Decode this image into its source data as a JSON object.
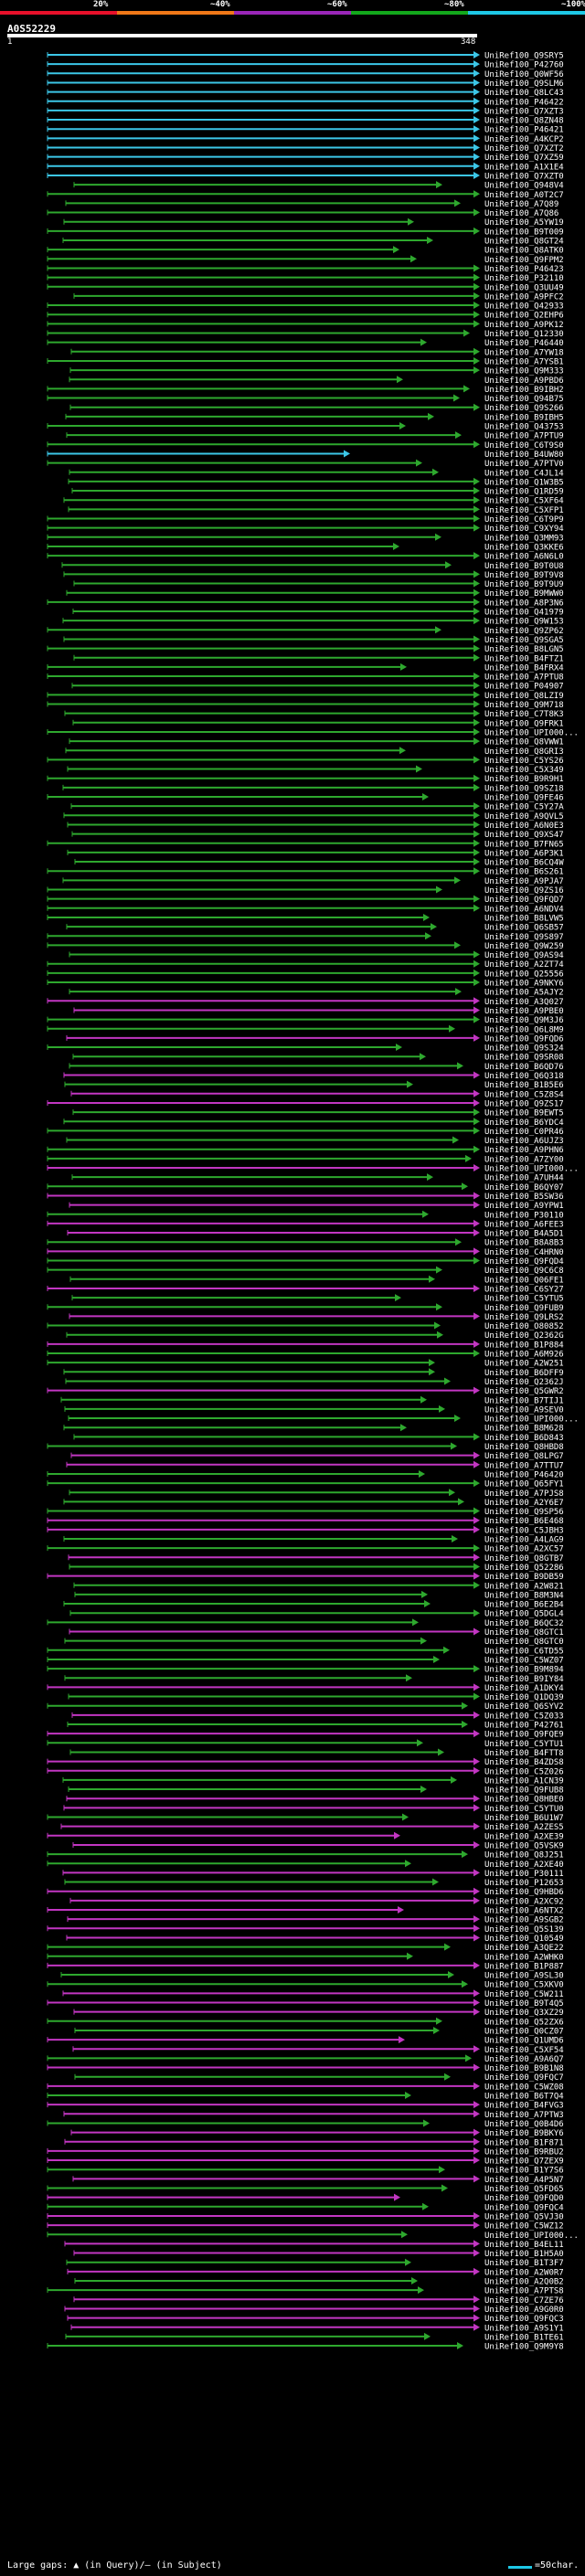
{
  "legend": {
    "segments": [
      {
        "label": "20%",
        "color": "#e8102a"
      },
      {
        "label": "~40%",
        "color": "#f07818"
      },
      {
        "label": "~60%",
        "color": "#9a26b8"
      },
      {
        "label": "~80%",
        "color": "#13a81c"
      },
      {
        "label": "~100%",
        "color": "#1ec8e6"
      }
    ]
  },
  "query": {
    "id": "A0S52229",
    "scale_start": "1",
    "scale_end": "348"
  },
  "colors": {
    "cyan": "#3cc7e8",
    "green": "#2ea82e",
    "magenta": "#c236c2",
    "label": "#ffffff"
  },
  "hits": [
    "UniRef100_Q9SRY5",
    "UniRef100_P42760",
    "UniRef100_Q0WF56",
    "UniRef100_Q9SLM6",
    "UniRef100_Q8LC43",
    "UniRef100_P46422",
    "UniRef100_Q7XZT3",
    "UniRef100_Q8ZN48",
    "UniRef100_P46421",
    "UniRef100_A4KCP2",
    "UniRef100_Q7XZT2",
    "UniRef100_Q7XZ59",
    "UniRef100_A1X1E4",
    "UniRef100_Q7XZT0",
    "UniRef100_Q948V4",
    "UniRef100_A0T2C7",
    "UniRef100_A7Q89",
    "UniRef100_A7Q86",
    "UniRef100_A5YW19",
    "UniRef100_B9T009",
    "UniRef100_Q8GT24",
    "UniRef100_Q8ATK0",
    "UniRef100_Q9FPM2",
    "UniRef100_P46423",
    "UniRef100_P32110",
    "UniRef100_Q3UU49",
    "UniRef100_A9PFC2",
    "UniRef100_Q42933",
    "UniRef100_Q2EHP6",
    "UniRef100_A9PK12",
    "UniRef100_Q12330",
    "UniRef100_P46440",
    "UniRef100_A7YW18",
    "UniRef100_A7YSB1",
    "UniRef100_Q9M333",
    "UniRef100_A9PBD6",
    "UniRef100_B9IBH2",
    "UniRef100_Q94B75",
    "UniRef100_Q9S266",
    "UniRef100_B9IBH5",
    "UniRef100_Q43753",
    "UniRef100_A7PTU9",
    "UniRef100_C6T9S0",
    "UniRef100_B4UW80",
    "UniRef100_A7PTV0",
    "UniRef100_C4JL14",
    "UniRef100_Q1W3B5",
    "UniRef100_Q1RD59",
    "UniRef100_C5XF64",
    "UniRef100_C5XFP1",
    "UniRef100_C6T9P9",
    "UniRef100_C9XY94",
    "UniRef100_Q3MM93",
    "UniRef100_Q3KKE6",
    "UniRef100_A6N6L0",
    "UniRef100_B9T0U8",
    "UniRef100_B9T9V8",
    "UniRef100_B9T9U9",
    "UniRef100_B9MWW0",
    "UniRef100_A8P3N6",
    "UniRef100_Q41979",
    "UniRef100_Q9W153",
    "UniRef100_Q9ZP62",
    "UniRef100_Q9SGA5",
    "UniRef100_B8LGN5",
    "UniRef100_B4FTZ1",
    "UniRef100_B4FRX4",
    "UniRef100_A7PTU8",
    "UniRef100_P04907",
    "UniRef100_Q8LZI9",
    "UniRef100_Q9M718",
    "UniRef100_C7T8K3",
    "UniRef100_Q9FRK1",
    "UniRef100_UPI000...",
    "UniRef100_Q8VWW1",
    "UniRef100_Q8GRI3",
    "UniRef100_C5YS26",
    "UniRef100_C5X349",
    "UniRef100_B9R9H1",
    "UniRef100_Q9SZ18",
    "UniRef100_Q9FE46",
    "UniRef100_C5Y27A",
    "UniRef100_A9QVL5",
    "UniRef100_A6N0E3",
    "UniRef100_Q9XS47",
    "UniRef100_B7FN65",
    "UniRef100_A6P3K1",
    "UniRef100_B6CQ4W",
    "UniRef100_B6S261",
    "UniRef100_A9PJA7",
    "UniRef100_Q9ZS16",
    "UniRef100_Q9FQD7",
    "UniRef100_A6NDV4",
    "UniRef100_B8LVW5",
    "UniRef100_Q6SB57",
    "UniRef100_Q9S897",
    "UniRef100_Q9W259",
    "UniRef100_Q9AS94",
    "UniRef100_A2ZT74",
    "UniRef100_Q25556",
    "UniRef100_A9NKY6",
    "UniRef100_A5AJY2",
    "UniRef100_A3Q027",
    "UniRef100_A9PBE0",
    "UniRef100_Q9M3J6",
    "UniRef100_Q6L8M9",
    "UniRef100_Q9FQD6",
    "UniRef100_Q9S324",
    "UniRef100_Q9SR08",
    "UniRef100_B6QD76",
    "UniRef100_Q6Q318",
    "UniRef100_B1B5E6",
    "UniRef100_C5Z8S4",
    "UniRef100_Q9ZS17",
    "UniRef100_B9EWT5",
    "UniRef100_B6YDC4",
    "UniRef100_C0PR46",
    "UniRef100_A6UJZ3",
    "UniRef100_A9PHN6",
    "UniRef100_A7ZY00",
    "UniRef100_UPI000...",
    "UniRef100_A7UH44",
    "UniRef100_B6QY07",
    "UniRef100_B5SW36",
    "UniRef100_A9YPW1",
    "UniRef100_P30110",
    "UniRef100_A6FEE3",
    "UniRef100_B4A5D1",
    "UniRef100_B8A8B3",
    "UniRef100_C4HRN0",
    "UniRef100_Q9FQD4",
    "UniRef100_Q9C6C8",
    "UniRef100_Q06FE1",
    "UniRef100_C6SY27",
    "UniRef100_C5YTU5",
    "UniRef100_Q9FUB9",
    "UniRef100_Q9LRS2",
    "UniRef100_O80852",
    "UniRef100_Q2362G",
    "UniRef100_B1P884",
    "UniRef100_A6M926",
    "UniRef100_A2W251",
    "UniRef100_B6DFF9",
    "UniRef100_Q2362J",
    "UniRef100_Q5GWR2",
    "UniRef100_B7TIJ1",
    "UniRef100_A9SEV0",
    "UniRef100_UPI000...",
    "UniRef100_B8M628",
    "UniRef100_B6D843",
    "UniRef100_Q8HBD8",
    "UniRef100_Q8LPG7",
    "UniRef100_A7TTU7",
    "UniRef100_P46420",
    "UniRef100_Q65FY1",
    "UniRef100_A7PJS8",
    "UniRef100_A2Y6E7",
    "UniRef100_Q9SP56",
    "UniRef100_B6E468",
    "UniRef100_C5JBH3",
    "UniRef100_A4LAG9",
    "UniRef100_A2XC57",
    "UniRef100_Q8GTB7",
    "UniRef100_Q52286",
    "UniRef100_B9DB59",
    "UniRef100_A2W821",
    "UniRef100_B8M3N4",
    "UniRef100_B6E2B4",
    "UniRef100_Q5DGL4",
    "UniRef100_B6QC32",
    "UniRef100_Q8GTC1",
    "UniRef100_Q8GTC0",
    "UniRef100_C6TD55",
    "UniRef100_C5WZ07",
    "UniRef100_B9M894",
    "UniRef100_B9IY84",
    "UniRef100_A1DKY4",
    "UniRef100_Q1DQ39",
    "UniRef100_Q6SYV2",
    "UniRef100_C5Z033",
    "UniRef100_P42761",
    "UniRef100_Q9FQE9",
    "UniRef100_C5YTU1",
    "UniRef100_B4FTT8",
    "UniRef100_B4ZDS8",
    "UniRef100_C5Z026",
    "UniRef100_A1CN39",
    "UniRef100_Q9FUB8",
    "UniRef100_Q8HBE0",
    "UniRef100_C5YTU0",
    "UniRef100_B6U1W7",
    "UniRef100_A2ZES5",
    "UniRef100_A2XE39",
    "UniRef100_Q5VSK9",
    "UniRef100_Q8J251",
    "UniRef100_A2XE40",
    "UniRef100_P30111",
    "UniRef100_P12653",
    "UniRef100_Q9HBD6",
    "UniRef100_A2XC92",
    "UniRef100_A6NTX2",
    "UniRef100_A9SGB2",
    "UniRef100_Q5S139",
    "UniRef100_Q10549",
    "UniRef100_A3QE22",
    "UniRef100_A2WHK0",
    "UniRef100_B1P887",
    "UniRef100_A9SL30",
    "UniRef100_C5XKV0",
    "UniRef100_C5W211",
    "UniRef100_B9T4Q5",
    "UniRef100_Q3XZ29",
    "UniRef100_Q52ZX6",
    "UniRef100_Q0CZ07",
    "UniRef100_Q1UMD6",
    "UniRef100_C5XF54",
    "UniRef100_A9A6Q7",
    "UniRef100_B9B1N8",
    "UniRef100_Q9FQC7",
    "UniRef100_C5WZ08",
    "UniRef100_B6T7Q4",
    "UniRef100_B4FVG3",
    "UniRef100_A7PTW3",
    "UniRef100_Q0B4D6",
    "UniRef100_B9BKY6",
    "UniRef100_B1F871",
    "UniRef100_B9RBU2",
    "UniRef100_Q7ZEX9",
    "UniRef100_B1Y7S6",
    "UniRef100_A4P5N7",
    "UniRef100_Q5FD65",
    "UniRef100_Q9FQD0",
    "UniRef100_Q9FQC4",
    "UniRef100_Q5VJ30",
    "UniRef100_C5WZ12",
    "UniRef100_UPI000...",
    "UniRef100_B4EL11",
    "UniRef100_B1H5A0",
    "UniRef100_B1T3F7",
    "UniRef100_A2W0R7",
    "UniRef100_A2Q0B2",
    "UniRef100_A7PTS8",
    "UniRef100_C7ZE76",
    "UniRef100_A9G0R0",
    "UniRef100_Q9FQC3",
    "UniRef100_A9S1Y1",
    "UniRef100_B1TE61",
    "UniRef100_Q9M9Y8"
  ],
  "footer": {
    "text": "Large gaps: ▲ (in Query)/– (in Subject)",
    "scale_label": "=50char."
  }
}
